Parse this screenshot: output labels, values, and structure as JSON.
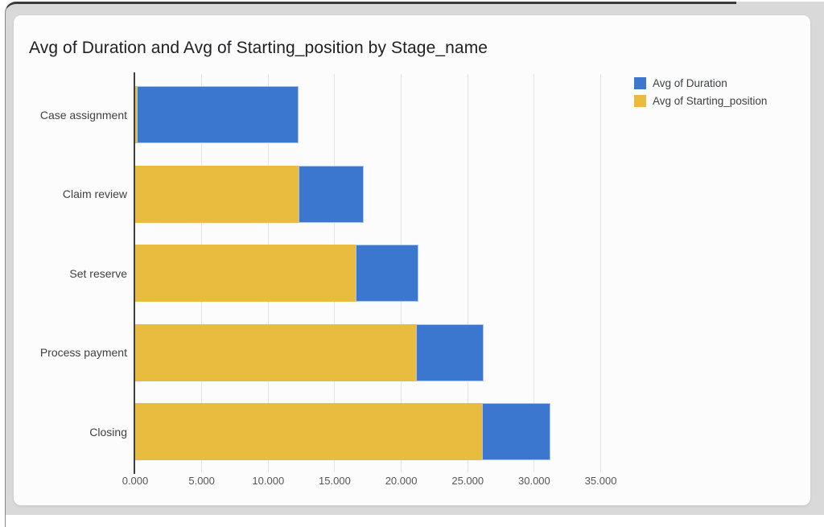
{
  "chart_data": {
    "type": "bar",
    "orientation": "horizontal",
    "stacked": true,
    "title": "Avg of Duration and Avg of Starting_position by Stage_name",
    "categories": [
      "Case assignment",
      "Claim review",
      "Set reserve",
      "Process payment",
      "Closing"
    ],
    "series": [
      {
        "name": "Avg of Starting_position",
        "color": "#E9BC40",
        "values": [
          0.1,
          12.3,
          16.6,
          21.1,
          26.1
        ]
      },
      {
        "name": "Avg of Duration",
        "color": "#3B77CE",
        "values": [
          12.2,
          4.9,
          4.7,
          5.1,
          5.1
        ]
      }
    ],
    "stack_ends": [
      12.3,
      17.2,
      21.3,
      26.2,
      31.2
    ],
    "x_ticks": [
      "0.000",
      "5.000",
      "10.000",
      "15.000",
      "20.000",
      "25.000",
      "30.000",
      "35.000"
    ],
    "x_tick_values": [
      0,
      5,
      10,
      15,
      20,
      25,
      30,
      35
    ],
    "xlim": [
      0,
      37.5
    ],
    "grid": "vertical-only",
    "legend_position": "top-right",
    "legend": [
      {
        "label": "Avg of Duration",
        "color": "#3B77CE"
      },
      {
        "label": "Avg of Starting_position",
        "color": "#E9BC40"
      }
    ],
    "colors": {
      "duration_blue": "#3B77CE",
      "starting_position_yellow": "#E9BC40",
      "duration_border": "#a9c3ef"
    }
  }
}
